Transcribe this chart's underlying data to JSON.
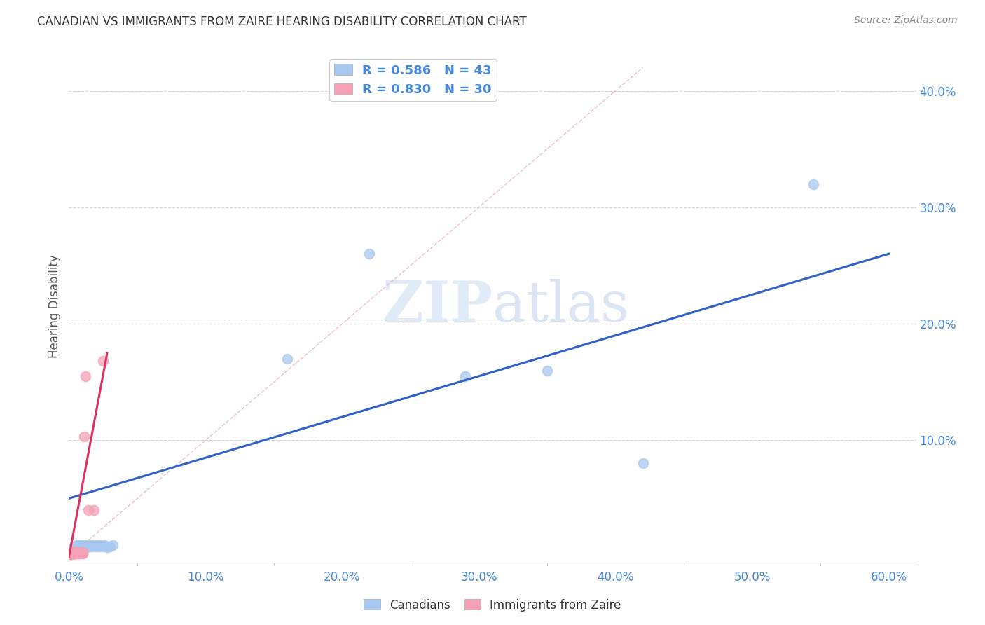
{
  "title": "CANADIAN VS IMMIGRANTS FROM ZAIRE HEARING DISABILITY CORRELATION CHART",
  "source_text": "Source: ZipAtlas.com",
  "ylabel": "Hearing Disability",
  "xlim": [
    0.0,
    0.62
  ],
  "ylim": [
    -0.005,
    0.435
  ],
  "xtick_labels": [
    "0.0%",
    "10.0%",
    "20.0%",
    "30.0%",
    "40.0%",
    "50.0%",
    "60.0%"
  ],
  "xtick_values": [
    0.0,
    0.1,
    0.2,
    0.3,
    0.4,
    0.5,
    0.6
  ],
  "ytick_labels": [
    "10.0%",
    "20.0%",
    "30.0%",
    "40.0%"
  ],
  "ytick_values": [
    0.1,
    0.2,
    0.3,
    0.4
  ],
  "canadian_color": "#a8c8f0",
  "zaire_color": "#f5a0b5",
  "canadian_line_color": "#3060c8",
  "zaire_line_color": "#e03060",
  "diagonal_line_color": "#e8b0b8",
  "r_canadian": 0.586,
  "n_canadian": 43,
  "r_zaire": 0.83,
  "n_zaire": 30,
  "legend_text_color": "#4488dd",
  "watermark_color": "#d0e4f8",
  "background_color": "#ffffff",
  "canadian_scatter_x": [
    0.001,
    0.002,
    0.002,
    0.003,
    0.003,
    0.004,
    0.004,
    0.004,
    0.005,
    0.005,
    0.006,
    0.006,
    0.007,
    0.007,
    0.008,
    0.008,
    0.009,
    0.009,
    0.01,
    0.01,
    0.011,
    0.012,
    0.013,
    0.014,
    0.015,
    0.016,
    0.017,
    0.018,
    0.02,
    0.021,
    0.022,
    0.023,
    0.025,
    0.026,
    0.028,
    0.03,
    0.032,
    0.16,
    0.22,
    0.29,
    0.35,
    0.42,
    0.545
  ],
  "canadian_scatter_y": [
    0.005,
    0.006,
    0.007,
    0.007,
    0.008,
    0.006,
    0.008,
    0.009,
    0.008,
    0.009,
    0.009,
    0.01,
    0.009,
    0.01,
    0.009,
    0.01,
    0.009,
    0.01,
    0.009,
    0.01,
    0.009,
    0.01,
    0.008,
    0.01,
    0.009,
    0.01,
    0.009,
    0.01,
    0.009,
    0.01,
    0.009,
    0.01,
    0.009,
    0.01,
    0.008,
    0.009,
    0.01,
    0.17,
    0.26,
    0.155,
    0.16,
    0.08,
    0.32
  ],
  "zaire_scatter_x": [
    0.001,
    0.001,
    0.002,
    0.002,
    0.002,
    0.002,
    0.003,
    0.003,
    0.003,
    0.004,
    0.004,
    0.004,
    0.005,
    0.005,
    0.005,
    0.006,
    0.006,
    0.007,
    0.007,
    0.008,
    0.008,
    0.009,
    0.01,
    0.01,
    0.01,
    0.011,
    0.012,
    0.014,
    0.018,
    0.025
  ],
  "zaire_scatter_y": [
    0.002,
    0.003,
    0.002,
    0.003,
    0.004,
    0.002,
    0.003,
    0.004,
    0.003,
    0.003,
    0.004,
    0.003,
    0.003,
    0.004,
    0.003,
    0.003,
    0.004,
    0.003,
    0.004,
    0.004,
    0.003,
    0.004,
    0.003,
    0.004,
    0.003,
    0.103,
    0.155,
    0.04,
    0.04,
    0.168
  ],
  "canadian_line_x": [
    0.0,
    0.6
  ],
  "canadian_line_y": [
    0.05,
    0.26
  ],
  "zaire_line_x": [
    0.0,
    0.028
  ],
  "zaire_line_y": [
    0.0,
    0.175
  ]
}
